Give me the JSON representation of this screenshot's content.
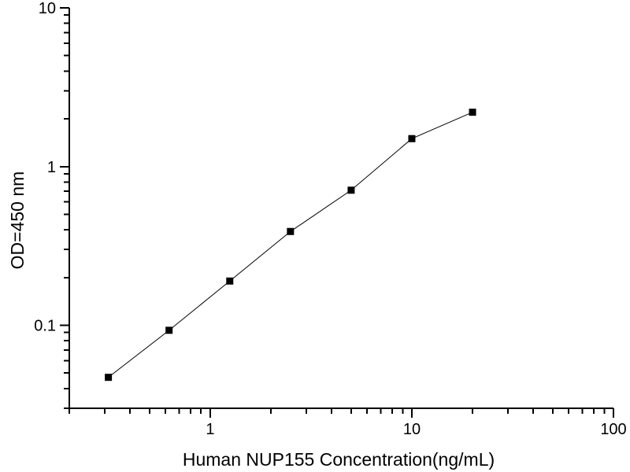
{
  "figure": {
    "background": "#ffffff"
  },
  "chart_data": {
    "type": "line",
    "title": "",
    "xlabel": "Human NUP155 Concentration(ng/mL)",
    "ylabel": "OD=450 nm",
    "x_scale": "log",
    "y_scale": "log",
    "xlim": [
      0.2,
      100
    ],
    "ylim": [
      0.03,
      10
    ],
    "x": [
      0.3125,
      0.625,
      1.25,
      2.5,
      5,
      10,
      20
    ],
    "y": [
      0.047,
      0.093,
      0.19,
      0.39,
      0.71,
      1.5,
      2.2
    ],
    "x_ticks": [
      {
        "value": 1,
        "label": "1"
      },
      {
        "value": 10,
        "label": "10"
      },
      {
        "value": 100,
        "label": "100"
      }
    ],
    "y_ticks": [
      {
        "value": 0.1,
        "label": "0.1"
      },
      {
        "value": 1,
        "label": "1"
      },
      {
        "value": 10,
        "label": "10"
      }
    ],
    "minor_ticks": true,
    "grid": false,
    "legend": false,
    "marker": "filled-square",
    "colors": {
      "axis": "#000000",
      "line": "#000000",
      "marker": "#000000",
      "text": "#000000"
    }
  }
}
